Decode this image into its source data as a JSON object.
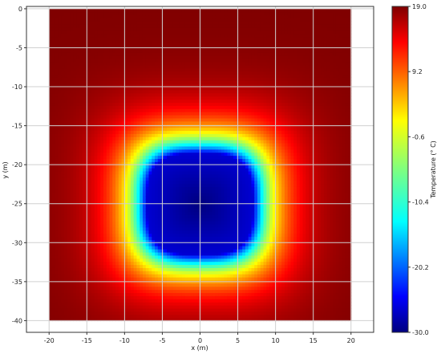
{
  "chart_data": {
    "type": "heatmap",
    "title": "",
    "xlabel": "x (m)",
    "ylabel": "y (m)",
    "xlim": [
      -23,
      23
    ],
    "ylim": [
      -41.5,
      0.3
    ],
    "x_ticks": [
      "-20",
      "-15",
      "-10",
      "-5",
      "0",
      "5",
      "10",
      "15",
      "20"
    ],
    "y_ticks": [
      "0",
      "-5",
      "-10",
      "-15",
      "-20",
      "-25",
      "-30",
      "-35",
      "-40"
    ],
    "grid": true,
    "field": {
      "domain_x": [
        -20,
        20
      ],
      "domain_y": [
        -40,
        0
      ],
      "background_value": 19.0,
      "cold_zone_center": [
        0,
        -25
      ],
      "cold_zone_core_halfwidth_x": 7,
      "cold_zone_core_halfwidth_y": 6.5,
      "cold_zone_min_value": -30.0
    },
    "colorbar": {
      "label": "Temperature (° C)",
      "min": -30.0,
      "max": 19.0,
      "ticks": [
        "19.0",
        "9.2",
        "-0.6",
        "-10.4",
        "-20.2",
        "-30.0"
      ],
      "tick_values": [
        19.0,
        9.2,
        -0.6,
        -10.4,
        -20.2,
        -30.0
      ],
      "colormap": "jet"
    },
    "colors": {
      "grid": "#d0d0d0",
      "background": "#800000"
    }
  }
}
